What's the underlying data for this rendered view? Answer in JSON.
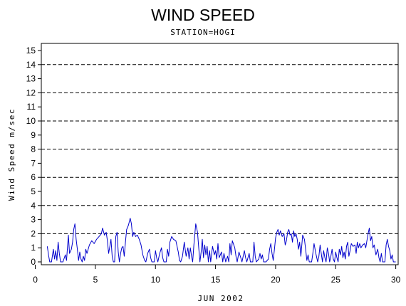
{
  "chart_data": {
    "type": "line",
    "title": "WIND SPEED",
    "subtitle": "STATION=HOGI",
    "xlabel": "JUN 2002",
    "ylabel": "Wind Speed m/sec",
    "xlim": [
      0.5,
      30.2
    ],
    "ylim": [
      0,
      15.3
    ],
    "x_ticks": [
      0,
      5,
      10,
      15,
      20,
      25,
      30
    ],
    "y_ticks": [
      0,
      1,
      2,
      3,
      4,
      5,
      6,
      7,
      8,
      9,
      10,
      11,
      12,
      13,
      14,
      15
    ],
    "dashed_gridlines_y": [
      2,
      4,
      6,
      8,
      10,
      12,
      14
    ],
    "line_color": "#0000cc",
    "series": [
      {
        "values": [
          [
            1.0,
            1.1
          ],
          [
            1.1,
            0.5
          ],
          [
            1.2,
            0.0
          ],
          [
            1.35,
            0.0
          ],
          [
            1.5,
            0.9
          ],
          [
            1.6,
            0.2
          ],
          [
            1.7,
            0.8
          ],
          [
            1.8,
            0.1
          ],
          [
            1.9,
            1.4
          ],
          [
            2.0,
            0.6
          ],
          [
            2.1,
            0.0
          ],
          [
            2.3,
            0.0
          ],
          [
            2.5,
            0.5
          ],
          [
            2.6,
            0.1
          ],
          [
            2.75,
            1.9
          ],
          [
            2.85,
            0.6
          ],
          [
            3.0,
            0.9
          ],
          [
            3.1,
            1.4
          ],
          [
            3.2,
            2.3
          ],
          [
            3.3,
            2.7
          ],
          [
            3.4,
            1.6
          ],
          [
            3.5,
            0.9
          ],
          [
            3.6,
            0.1
          ],
          [
            3.7,
            0.7
          ],
          [
            3.8,
            0.2
          ],
          [
            3.9,
            0.0
          ],
          [
            4.0,
            0.4
          ],
          [
            4.1,
            0.1
          ],
          [
            4.2,
            0.9
          ],
          [
            4.3,
            0.6
          ],
          [
            4.5,
            1.2
          ],
          [
            4.7,
            1.5
          ],
          [
            4.9,
            1.3
          ],
          [
            5.1,
            1.6
          ],
          [
            5.3,
            1.8
          ],
          [
            5.5,
            2.0
          ],
          [
            5.6,
            2.4
          ],
          [
            5.75,
            1.9
          ],
          [
            5.9,
            2.1
          ],
          [
            6.0,
            1.5
          ],
          [
            6.1,
            0.6
          ],
          [
            6.2,
            1.1
          ],
          [
            6.3,
            1.6
          ],
          [
            6.4,
            0.4
          ],
          [
            6.5,
            0.0
          ],
          [
            6.6,
            0.0
          ],
          [
            6.7,
            1.8
          ],
          [
            6.8,
            2.1
          ],
          [
            6.9,
            0.7
          ],
          [
            7.0,
            0.0
          ],
          [
            7.1,
            0.6
          ],
          [
            7.2,
            1.0
          ],
          [
            7.3,
            1.1
          ],
          [
            7.4,
            0.4
          ],
          [
            7.5,
            1.4
          ],
          [
            7.6,
            2.3
          ],
          [
            7.75,
            2.6
          ],
          [
            7.9,
            3.1
          ],
          [
            8.0,
            2.7
          ],
          [
            8.1,
            1.8
          ],
          [
            8.2,
            2.1
          ],
          [
            8.35,
            1.8
          ],
          [
            8.5,
            1.9
          ],
          [
            8.65,
            1.6
          ],
          [
            8.8,
            1.2
          ],
          [
            8.95,
            0.5
          ],
          [
            9.1,
            0.1
          ],
          [
            9.2,
            0.0
          ],
          [
            9.35,
            0.6
          ],
          [
            9.5,
            0.9
          ],
          [
            9.6,
            0.3
          ],
          [
            9.7,
            0.0
          ],
          [
            9.9,
            0.0
          ],
          [
            10.0,
            0.8
          ],
          [
            10.1,
            0.3
          ],
          [
            10.2,
            0.0
          ],
          [
            10.35,
            0.6
          ],
          [
            10.5,
            1.0
          ],
          [
            10.6,
            0.3
          ],
          [
            10.7,
            0.0
          ],
          [
            10.9,
            0.0
          ],
          [
            11.0,
            0.9
          ],
          [
            11.1,
            0.4
          ],
          [
            11.2,
            1.4
          ],
          [
            11.35,
            1.8
          ],
          [
            11.5,
            1.6
          ],
          [
            11.7,
            1.5
          ],
          [
            11.9,
            0.7
          ],
          [
            12.0,
            0.1
          ],
          [
            12.1,
            0.0
          ],
          [
            12.25,
            0.4
          ],
          [
            12.4,
            1.4
          ],
          [
            12.55,
            0.4
          ],
          [
            12.7,
            1.0
          ],
          [
            12.8,
            0.2
          ],
          [
            12.9,
            1.0
          ],
          [
            13.0,
            0.4
          ],
          [
            13.1,
            0.0
          ],
          [
            13.2,
            1.2
          ],
          [
            13.35,
            2.7
          ],
          [
            13.5,
            2.1
          ],
          [
            13.6,
            1.0
          ],
          [
            13.7,
            0.0
          ],
          [
            13.8,
            0.7
          ],
          [
            13.9,
            1.6
          ],
          [
            14.0,
            0.3
          ],
          [
            14.1,
            1.2
          ],
          [
            14.2,
            0.5
          ],
          [
            14.3,
            1.1
          ],
          [
            14.4,
            0.0
          ],
          [
            14.5,
            0.8
          ],
          [
            14.6,
            0.0
          ],
          [
            14.75,
            1.1
          ],
          [
            14.9,
            0.5
          ],
          [
            15.0,
            0.8
          ],
          [
            15.1,
            0.2
          ],
          [
            15.2,
            1.3
          ],
          [
            15.3,
            0.3
          ],
          [
            15.5,
            0.7
          ],
          [
            15.6,
            0.0
          ],
          [
            15.7,
            0.6
          ],
          [
            15.85,
            0.0
          ],
          [
            16.0,
            0.4
          ],
          [
            16.1,
            0.0
          ],
          [
            16.2,
            1.3
          ],
          [
            16.3,
            0.5
          ],
          [
            16.4,
            1.5
          ],
          [
            16.6,
            1.0
          ],
          [
            16.7,
            0.4
          ],
          [
            16.8,
            0.0
          ],
          [
            16.95,
            0.7
          ],
          [
            17.1,
            0.3
          ],
          [
            17.2,
            0.0
          ],
          [
            17.4,
            0.8
          ],
          [
            17.5,
            0.3
          ],
          [
            17.6,
            0.0
          ],
          [
            17.8,
            0.6
          ],
          [
            17.9,
            0.0
          ],
          [
            18.1,
            0.0
          ],
          [
            18.2,
            1.4
          ],
          [
            18.3,
            0.4
          ],
          [
            18.4,
            0.0
          ],
          [
            18.6,
            0.2
          ],
          [
            18.7,
            0.6
          ],
          [
            18.8,
            0.2
          ],
          [
            18.9,
            0.5
          ],
          [
            19.0,
            0.0
          ],
          [
            19.2,
            0.0
          ],
          [
            19.4,
            0.2
          ],
          [
            19.5,
            0.9
          ],
          [
            19.6,
            1.3
          ],
          [
            19.7,
            0.6
          ],
          [
            19.8,
            0.1
          ],
          [
            19.9,
            0.9
          ],
          [
            20.0,
            1.7
          ],
          [
            20.1,
            2.1
          ],
          [
            20.2,
            2.3
          ],
          [
            20.3,
            1.9
          ],
          [
            20.4,
            2.2
          ],
          [
            20.55,
            1.8
          ],
          [
            20.7,
            2.0
          ],
          [
            20.8,
            1.2
          ],
          [
            20.9,
            1.5
          ],
          [
            21.0,
            2.1
          ],
          [
            21.1,
            2.3
          ],
          [
            21.2,
            1.9
          ],
          [
            21.3,
            2.0
          ],
          [
            21.4,
            1.4
          ],
          [
            21.5,
            2.2
          ],
          [
            21.6,
            1.8
          ],
          [
            21.7,
            2.0
          ],
          [
            21.8,
            1.6
          ],
          [
            21.9,
            0.9
          ],
          [
            22.0,
            1.4
          ],
          [
            22.1,
            0.4
          ],
          [
            22.25,
            1.9
          ],
          [
            22.4,
            1.6
          ],
          [
            22.5,
            0.9
          ],
          [
            22.6,
            0.1
          ],
          [
            22.7,
            0.5
          ],
          [
            22.8,
            0.0
          ],
          [
            23.0,
            0.0
          ],
          [
            23.1,
            0.6
          ],
          [
            23.2,
            1.3
          ],
          [
            23.35,
            0.6
          ],
          [
            23.5,
            0.0
          ],
          [
            23.6,
            0.4
          ],
          [
            23.7,
            1.2
          ],
          [
            23.8,
            0.6
          ],
          [
            23.9,
            0.0
          ],
          [
            24.0,
            0.8
          ],
          [
            24.1,
            0.3
          ],
          [
            24.2,
            0.0
          ],
          [
            24.3,
            1.0
          ],
          [
            24.4,
            0.6
          ],
          [
            24.5,
            0.0
          ],
          [
            24.6,
            0.4
          ],
          [
            24.7,
            0.9
          ],
          [
            24.8,
            0.2
          ],
          [
            24.9,
            0.0
          ],
          [
            25.0,
            0.7
          ],
          [
            25.1,
            0.3
          ],
          [
            25.2,
            0.0
          ],
          [
            25.3,
            0.9
          ],
          [
            25.4,
            0.5
          ],
          [
            25.5,
            1.1
          ],
          [
            25.6,
            0.3
          ],
          [
            25.7,
            0.7
          ],
          [
            25.8,
            0.2
          ],
          [
            25.9,
            1.1
          ],
          [
            26.0,
            1.4
          ],
          [
            26.1,
            0.4
          ],
          [
            26.2,
            0.8
          ],
          [
            26.3,
            1.3
          ],
          [
            26.45,
            1.1
          ],
          [
            26.6,
            1.2
          ],
          [
            26.7,
            0.6
          ],
          [
            26.8,
            1.4
          ],
          [
            26.9,
            1.0
          ],
          [
            27.0,
            1.3
          ],
          [
            27.1,
            1.0
          ],
          [
            27.25,
            1.2
          ],
          [
            27.4,
            1.3
          ],
          [
            27.5,
            1.0
          ],
          [
            27.6,
            1.5
          ],
          [
            27.7,
            2.0
          ],
          [
            27.8,
            2.4
          ],
          [
            27.9,
            1.5
          ],
          [
            28.0,
            1.8
          ],
          [
            28.1,
            1.0
          ],
          [
            28.2,
            1.2
          ],
          [
            28.35,
            0.5
          ],
          [
            28.5,
            0.9
          ],
          [
            28.6,
            0.3
          ],
          [
            28.7,
            0.0
          ],
          [
            28.8,
            0.6
          ],
          [
            28.9,
            0.0
          ],
          [
            29.1,
            0.0
          ],
          [
            29.2,
            1.2
          ],
          [
            29.3,
            1.6
          ],
          [
            29.4,
            1.1
          ],
          [
            29.5,
            0.8
          ],
          [
            29.6,
            0.2
          ],
          [
            29.7,
            0.5
          ],
          [
            29.8,
            0.0
          ],
          [
            30.0,
            0.0
          ]
        ]
      }
    ]
  }
}
